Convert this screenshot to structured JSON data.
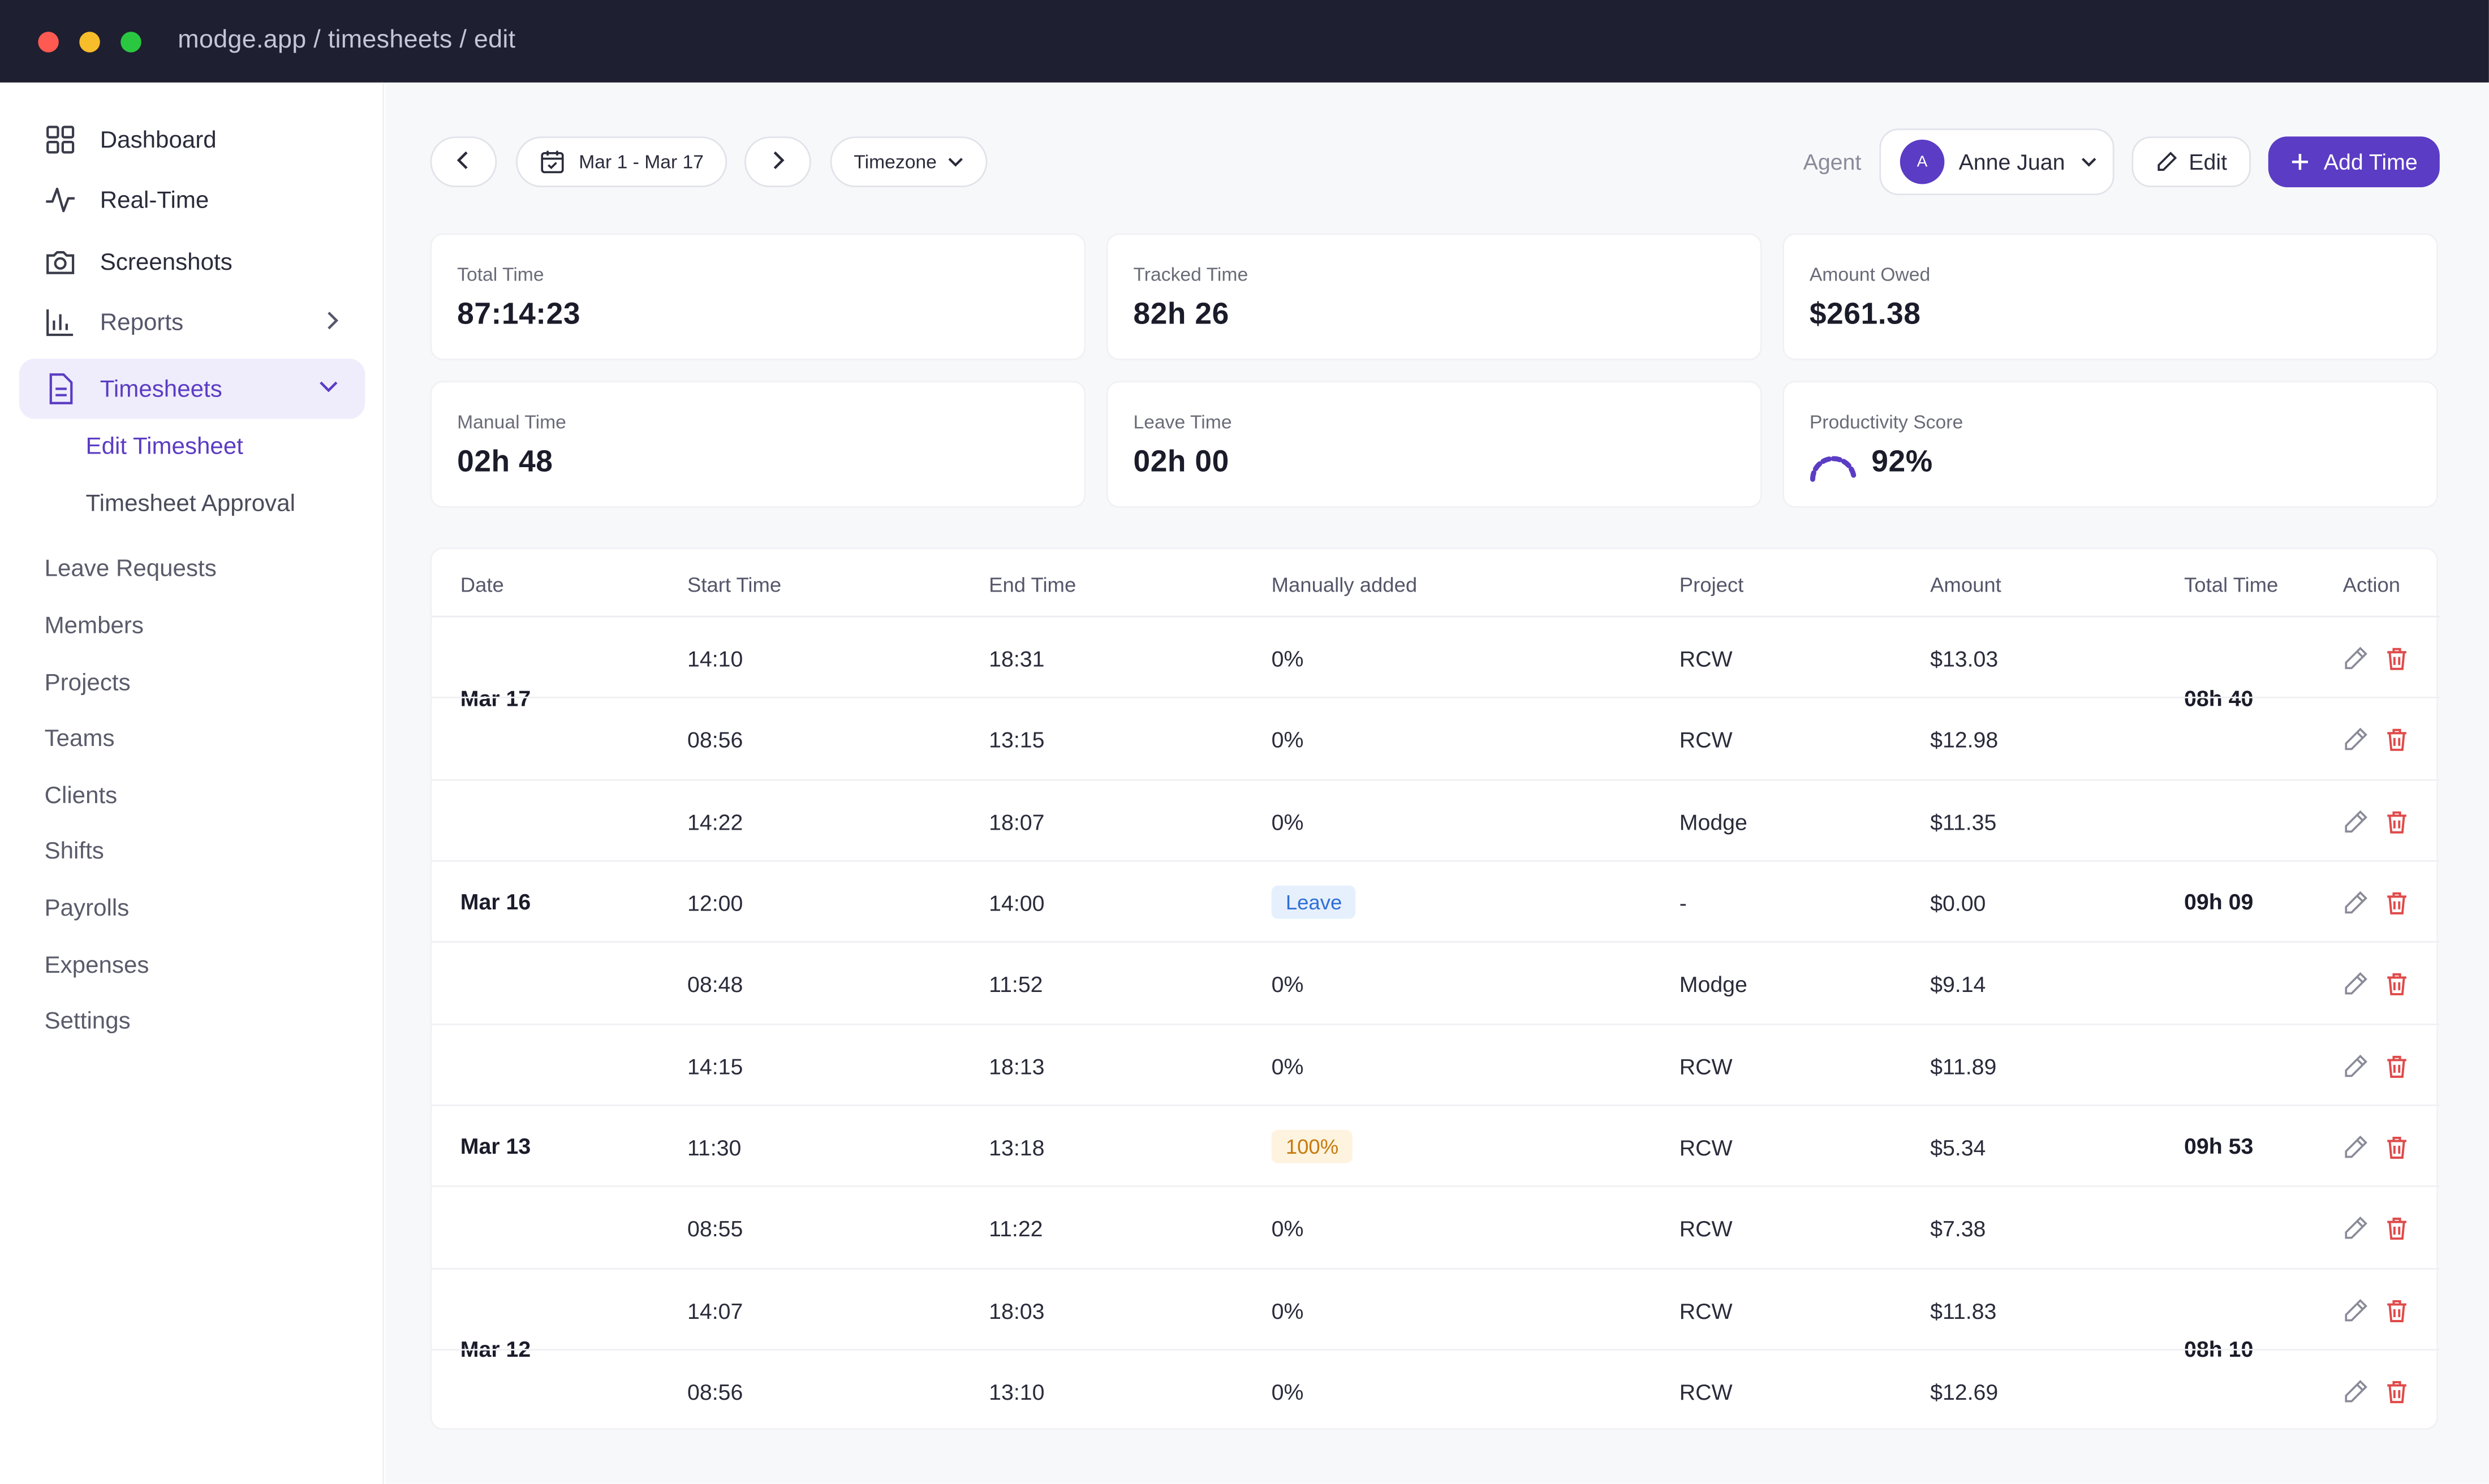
{
  "window": {
    "url": "modge.app / timesheets / edit"
  },
  "sidebar": {
    "items": [
      {
        "label": "Dashboard",
        "icon": "grid-icon"
      },
      {
        "label": "Real-Time",
        "icon": "pulse-icon"
      },
      {
        "label": "Screenshots",
        "icon": "camera-icon"
      },
      {
        "label": "Reports",
        "icon": "bar-chart-icon"
      },
      {
        "label": "Timesheets",
        "icon": "document-icon"
      }
    ],
    "sub_items": [
      "Edit Timesheet",
      "Timesheet Approval"
    ],
    "plain_items": [
      "Leave Requests",
      "Members",
      "Projects",
      "Teams",
      "Clients",
      "Shifts",
      "Payrolls",
      "Expenses",
      "Settings"
    ]
  },
  "toolbar": {
    "date_range": "Mar 1 - Mar 17",
    "timezone": "Timezone",
    "agent_label": "Agent",
    "agent_initial": "A",
    "agent_name": "Anne Juan",
    "edit_label": "Edit",
    "add_label": "Add Time"
  },
  "stats": [
    {
      "label": "Total Time",
      "value": "87:14:23"
    },
    {
      "label": "Tracked Time",
      "value": "82h 26"
    },
    {
      "label": "Amount Owed",
      "value": "$261.38"
    },
    {
      "label": "Manual Time",
      "value": "02h 48"
    },
    {
      "label": "Leave Time",
      "value": "02h 00"
    },
    {
      "label": "Productivity Score",
      "value": "92%"
    }
  ],
  "colors": {
    "accent": "#5b3cc4",
    "delete": "#e04a4a"
  },
  "table": {
    "headers": [
      "Date",
      "Start Time",
      "End Time",
      "Manually added",
      "Project",
      "Amount",
      "Total Time",
      "Action"
    ],
    "groups": [
      {
        "date": "Mar 17",
        "total": "08h 40"
      },
      {
        "date": "Mar 16",
        "total": "09h 09"
      },
      {
        "date": "Mar 13",
        "total": "09h 53"
      },
      {
        "date": "Mar 12",
        "total": "08h 10"
      }
    ],
    "rows": [
      {
        "start": "14:10",
        "end": "18:31",
        "manual": "0%",
        "project": "RCW",
        "amount": "$13.03"
      },
      {
        "start": "08:56",
        "end": "13:15",
        "manual": "0%",
        "project": "RCW",
        "amount": "$12.98"
      },
      {
        "start": "14:22",
        "end": "18:07",
        "manual": "0%",
        "project": "Modge",
        "amount": "$11.35"
      },
      {
        "start": "12:00",
        "end": "14:00",
        "manual": "Leave",
        "project": "-",
        "amount": "$0.00"
      },
      {
        "start": "08:48",
        "end": "11:52",
        "manual": "0%",
        "project": "Modge",
        "amount": "$9.14"
      },
      {
        "start": "14:15",
        "end": "18:13",
        "manual": "0%",
        "project": "RCW",
        "amount": "$11.89"
      },
      {
        "start": "11:30",
        "end": "13:18",
        "manual": "100%",
        "project": "RCW",
        "amount": "$5.34"
      },
      {
        "start": "08:55",
        "end": "11:22",
        "manual": "0%",
        "project": "RCW",
        "amount": "$7.38"
      },
      {
        "start": "14:07",
        "end": "18:03",
        "manual": "0%",
        "project": "RCW",
        "amount": "$11.83"
      },
      {
        "start": "08:56",
        "end": "13:10",
        "manual": "0%",
        "project": "RCW",
        "amount": "$12.69"
      }
    ]
  }
}
